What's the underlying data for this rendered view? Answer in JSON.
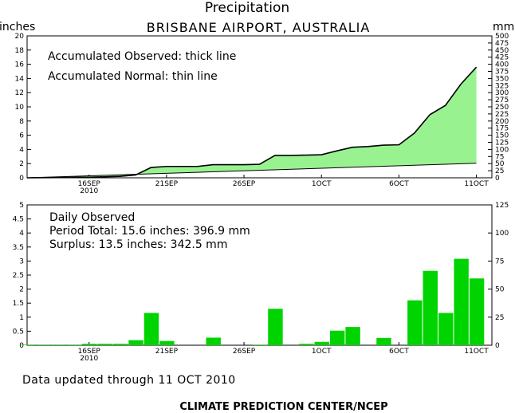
{
  "title": "Precipitation",
  "subtitle": "BRISBANE AIRPORT, AUSTRALIA",
  "footer_updated": "Data updated through 11 OCT 2010",
  "footer_credit": "CLIMATE PREDICTION CENTER/NCEP",
  "colors": {
    "accumulated_fill": "#99f290",
    "daily_bar": "#00d400",
    "line": "#000000"
  },
  "chart_data": [
    {
      "type": "area",
      "ylabel_left": "inches",
      "ylabel_right": "mm",
      "annotations": [
        "Accumulated Observed: thick line",
        "Accumulated Normal: thin line"
      ],
      "xlim": [
        0,
        30
      ],
      "ylim": [
        0,
        20
      ],
      "yticks_left": [
        0,
        2,
        4,
        6,
        8,
        10,
        12,
        14,
        16,
        18,
        20
      ],
      "yticks_right": [
        0,
        25,
        50,
        75,
        100,
        125,
        150,
        175,
        200,
        225,
        250,
        275,
        300,
        325,
        350,
        375,
        400,
        425,
        450,
        475,
        500
      ],
      "xticks": [
        {
          "x": 4,
          "label": "16SEP",
          "sub": "2010"
        },
        {
          "x": 9,
          "label": "21SEP",
          "sub": ""
        },
        {
          "x": 14,
          "label": "26SEP",
          "sub": ""
        },
        {
          "x": 19,
          "label": "1OCT",
          "sub": ""
        },
        {
          "x": 24,
          "label": "6OCT",
          "sub": ""
        },
        {
          "x": 29,
          "label": "11OCT",
          "sub": ""
        }
      ],
      "series": [
        {
          "name": "Accumulated Observed",
          "x": [
            0,
            1,
            2,
            3,
            4,
            5,
            6,
            7,
            8,
            9,
            10,
            11,
            12,
            13,
            14,
            15,
            16,
            17,
            18,
            19,
            20,
            21,
            22,
            23,
            24,
            25,
            26,
            27,
            28,
            29
          ],
          "values": [
            0.0,
            0.02,
            0.04,
            0.06,
            0.08,
            0.14,
            0.2,
            0.4,
            1.45,
            1.6,
            1.6,
            1.6,
            1.85,
            1.85,
            1.85,
            1.9,
            3.15,
            3.15,
            3.2,
            3.25,
            3.8,
            4.3,
            4.4,
            4.6,
            4.65,
            6.3,
            8.9,
            10.2,
            13.2,
            15.6
          ]
        },
        {
          "name": "Accumulated Normal",
          "x": [
            0,
            29
          ],
          "values": [
            0.0,
            2.05
          ]
        }
      ]
    },
    {
      "type": "bar",
      "annotations": [
        "Daily Observed",
        "Period Total:    15.6 inches:    396.9 mm",
        "Surplus:    13.5 inches:   342.5 mm"
      ],
      "xlim": [
        0,
        30
      ],
      "ylim": [
        0,
        5
      ],
      "yticks_left": [
        0,
        0.5,
        1,
        1.5,
        2,
        2.5,
        3,
        3.5,
        4,
        4.5,
        5
      ],
      "yticks_right": [
        0,
        25,
        50,
        75,
        100,
        125
      ],
      "x": [
        0,
        1,
        2,
        3,
        4,
        5,
        6,
        7,
        8,
        9,
        10,
        11,
        12,
        13,
        14,
        15,
        16,
        17,
        18,
        19,
        20,
        21,
        22,
        23,
        24,
        25,
        26,
        27,
        28,
        29
      ],
      "values": [
        0.02,
        0.02,
        0.02,
        0.02,
        0.05,
        0.05,
        0.05,
        0.18,
        1.15,
        0.15,
        0.0,
        0.0,
        0.27,
        0.0,
        0.0,
        0.02,
        1.3,
        0.0,
        0.05,
        0.12,
        0.52,
        0.65,
        0.0,
        0.26,
        0.0,
        1.6,
        2.65,
        1.15,
        3.08,
        2.38
      ]
    }
  ]
}
